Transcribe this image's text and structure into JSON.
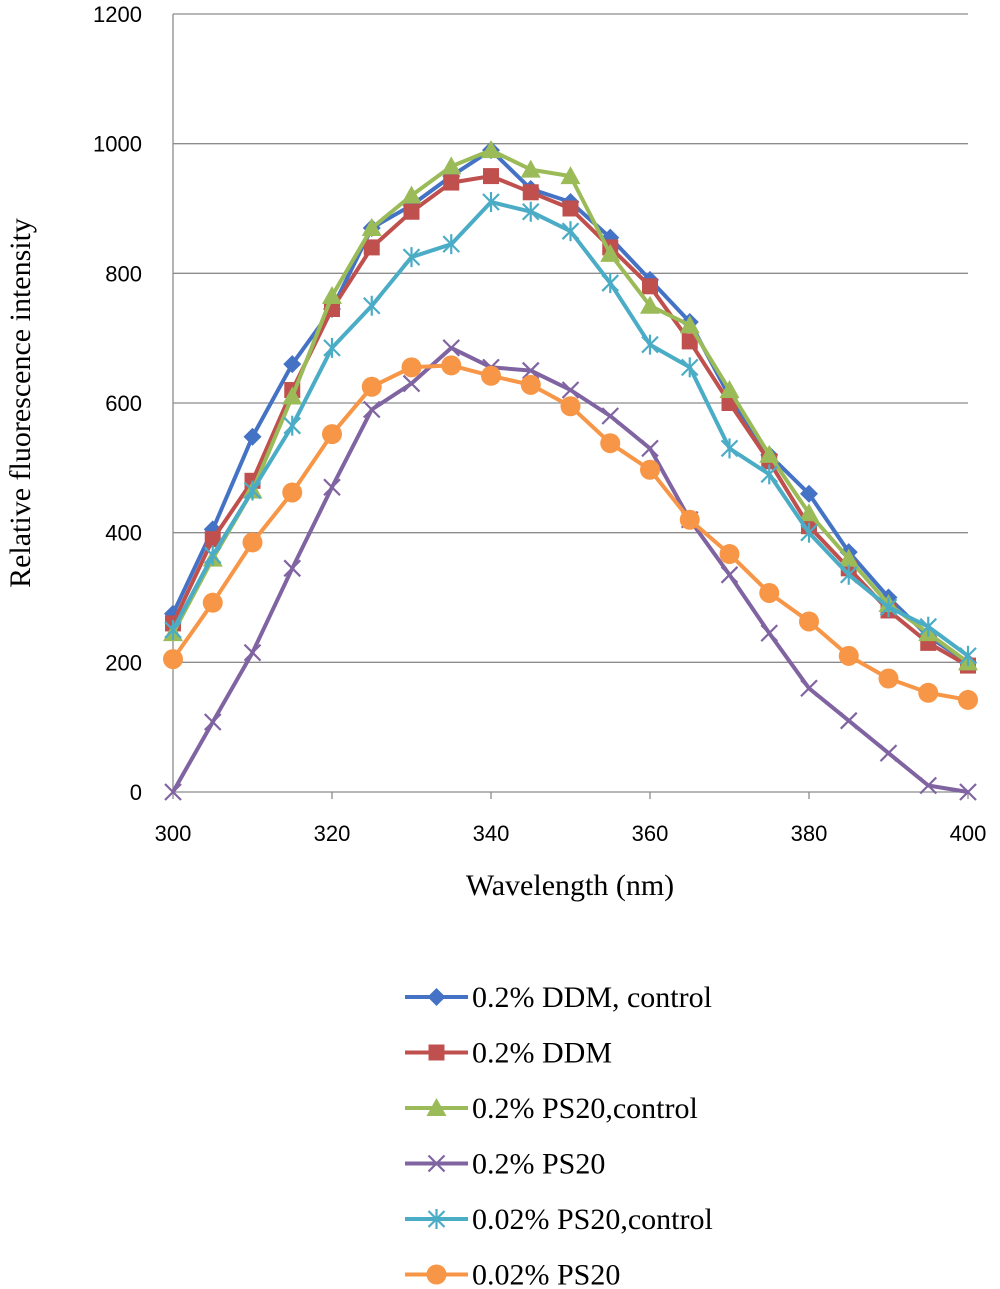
{
  "chart_data": {
    "type": "line",
    "xlabel": "Wavelength (nm)",
    "ylabel": "Relative fluorescence intensity",
    "xlim": [
      300,
      400
    ],
    "ylim": [
      0,
      1200
    ],
    "x_ticks": [
      300,
      320,
      340,
      360,
      380,
      400
    ],
    "y_ticks": [
      0,
      200,
      400,
      600,
      800,
      1000,
      1200
    ],
    "grid": "horizontal",
    "legend_position": "bottom",
    "x": [
      300,
      305,
      310,
      315,
      320,
      325,
      330,
      335,
      340,
      345,
      350,
      355,
      360,
      365,
      370,
      375,
      380,
      385,
      390,
      395,
      400
    ],
    "series": [
      {
        "name": "0.2% DDM, control",
        "color": "#4472c4",
        "marker": "diamond",
        "values": [
          275,
          405,
          548,
          660,
          745,
          870,
          905,
          950,
          990,
          930,
          910,
          855,
          790,
          725,
          610,
          520,
          460,
          370,
          300,
          240,
          200
        ]
      },
      {
        "name": "0.2% DDM",
        "color": "#c0504d",
        "marker": "square",
        "values": [
          260,
          390,
          480,
          620,
          745,
          840,
          895,
          940,
          950,
          925,
          900,
          840,
          780,
          695,
          600,
          510,
          410,
          345,
          280,
          230,
          195
        ]
      },
      {
        "name": "0.2% PS20,control",
        "color": "#9bbb59",
        "marker": "triangle",
        "values": [
          245,
          360,
          465,
          610,
          765,
          870,
          920,
          965,
          990,
          960,
          950,
          830,
          750,
          720,
          620,
          520,
          430,
          360,
          290,
          245,
          200
        ]
      },
      {
        "name": "0.2% PS20",
        "color": "#8064a2",
        "marker": "x",
        "values": [
          0,
          108,
          215,
          345,
          470,
          590,
          630,
          685,
          655,
          650,
          620,
          580,
          530,
          420,
          335,
          245,
          160,
          110,
          60,
          10,
          0
        ]
      },
      {
        "name": "0.02% PS20,control",
        "color": "#4bacc6",
        "marker": "star",
        "values": [
          250,
          365,
          465,
          565,
          685,
          750,
          825,
          845,
          910,
          895,
          865,
          785,
          690,
          655,
          530,
          490,
          400,
          335,
          285,
          255,
          210
        ]
      },
      {
        "name": "0.02% PS20",
        "color": "#f79646",
        "marker": "circle",
        "values": [
          205,
          292,
          385,
          462,
          552,
          625,
          655,
          658,
          642,
          628,
          595,
          538,
          497,
          420,
          367,
          307,
          263,
          210,
          175,
          153,
          142
        ]
      }
    ]
  }
}
